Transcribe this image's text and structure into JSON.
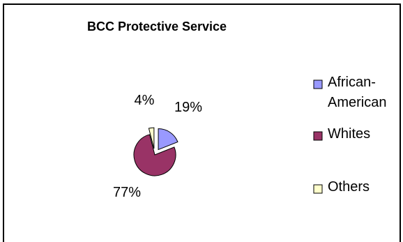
{
  "chart_data": {
    "type": "pie",
    "title": "BCC Protective Service",
    "legend_position": "right",
    "slices": [
      {
        "name": "African-American",
        "legend_lines": [
          "African-",
          "American"
        ],
        "value": 19,
        "label": "19%",
        "color": "#9999ff",
        "exploded": true
      },
      {
        "name": "Whites",
        "legend_lines": [
          "Whites"
        ],
        "value": 77,
        "label": "77%",
        "color": "#993366",
        "exploded": false
      },
      {
        "name": "Others",
        "legend_lines": [
          "Others"
        ],
        "value": 4,
        "label": "4%",
        "color": "#ffffcc",
        "exploded": true
      }
    ]
  }
}
